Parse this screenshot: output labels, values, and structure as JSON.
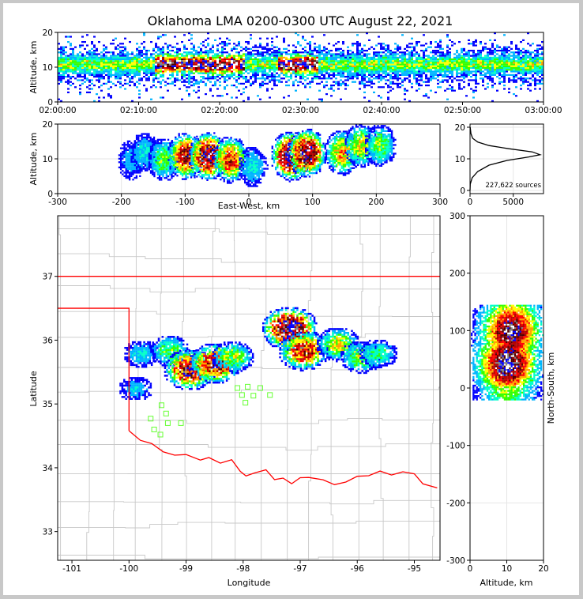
{
  "title": "Oklahoma LMA 0200-0300 UTC August 22, 2021",
  "colors": {
    "density": [
      "#0000ff",
      "#00b4ff",
      "#00ffc8",
      "#32ff00",
      "#ffff00",
      "#ffa000",
      "#ff0000",
      "#b40000",
      "#500000",
      "#ffffff"
    ],
    "state_border": "#ff0000",
    "county_lines": "#c8c8c8",
    "stations": "#66ff33"
  },
  "icons": {
    "station_marker": "open-square-icon"
  },
  "chart_data": [
    {
      "id": "time-height",
      "type": "heatmap",
      "xlabel": "",
      "ylabel": "Altitude, km",
      "xticks": [
        "02:00:00",
        "02:10:00",
        "02:20:00",
        "02:30:00",
        "02:40:00",
        "02:50:00",
        "03:00:00"
      ],
      "xlim": [
        0,
        60
      ],
      "ylim": [
        0,
        20
      ],
      "yticks": [
        0,
        10,
        20
      ],
      "band_center_km": 11,
      "dense_intervals_min": [
        [
          12,
          23
        ],
        [
          27,
          32
        ]
      ]
    },
    {
      "id": "east-west-altitude",
      "type": "heatmap",
      "xlabel": "East-West, km",
      "ylabel": "Altitude, km",
      "xlim": [
        -300,
        300
      ],
      "ylim": [
        0,
        20
      ],
      "xticks": [
        -300,
        -200,
        -100,
        0,
        100,
        200,
        300
      ],
      "yticks": [
        0,
        10,
        20
      ],
      "cells": [
        {
          "x": -185,
          "z": 10,
          "intensity": 0.35
        },
        {
          "x": -165,
          "z": 12,
          "intensity": 0.4
        },
        {
          "x": -135,
          "z": 10,
          "intensity": 0.55
        },
        {
          "x": -100,
          "z": 11,
          "intensity": 0.85
        },
        {
          "x": -65,
          "z": 11,
          "intensity": 0.95
        },
        {
          "x": -30,
          "z": 10,
          "intensity": 0.8
        },
        {
          "x": 5,
          "z": 8,
          "intensity": 0.4
        },
        {
          "x": 65,
          "z": 11,
          "intensity": 1.0
        },
        {
          "x": 90,
          "z": 12,
          "intensity": 0.95
        },
        {
          "x": 145,
          "z": 12,
          "intensity": 0.7
        },
        {
          "x": 175,
          "z": 14,
          "intensity": 0.65
        },
        {
          "x": 205,
          "z": 14,
          "intensity": 0.55
        }
      ]
    },
    {
      "id": "altitude-histogram",
      "type": "line",
      "xlim": [
        0,
        8500
      ],
      "ylim": [
        0,
        20
      ],
      "xticks": [
        0,
        5000
      ],
      "yticks": [
        0,
        10,
        20
      ],
      "profile": [
        [
          0,
          0
        ],
        [
          30,
          2
        ],
        [
          250,
          4
        ],
        [
          900,
          6
        ],
        [
          2200,
          8
        ],
        [
          4300,
          9.5
        ],
        [
          6800,
          10.6
        ],
        [
          8100,
          11.3
        ],
        [
          7200,
          12.2
        ],
        [
          4500,
          13.2
        ],
        [
          2200,
          14.2
        ],
        [
          900,
          15.3
        ],
        [
          300,
          16.5
        ],
        [
          100,
          18
        ],
        [
          20,
          20
        ]
      ],
      "annotation": "227,622 sources"
    },
    {
      "id": "plan-view-map",
      "type": "scatter",
      "xlabel": "Longitude",
      "ylabel": "Latitude",
      "xlim": [
        -101.25,
        -94.55
      ],
      "ylim": [
        32.55,
        37.95
      ],
      "xticks": [
        -101,
        -100,
        -99,
        -98,
        -97,
        -96,
        -95
      ],
      "yticks": [
        33,
        34,
        35,
        36,
        37
      ],
      "storms": [
        {
          "lon": -99.9,
          "lat": 35.25,
          "intensity": 0.35
        },
        {
          "lon": -99.8,
          "lat": 35.8,
          "intensity": 0.4
        },
        {
          "lon": -99.3,
          "lat": 35.85,
          "intensity": 0.55
        },
        {
          "lon": -98.95,
          "lat": 35.55,
          "intensity": 0.9
        },
        {
          "lon": -98.5,
          "lat": 35.65,
          "intensity": 0.9
        },
        {
          "lon": -98.2,
          "lat": 35.75,
          "intensity": 0.6
        },
        {
          "lon": -97.2,
          "lat": 36.2,
          "intensity": 1.0
        },
        {
          "lon": -96.95,
          "lat": 35.85,
          "intensity": 0.85
        },
        {
          "lon": -96.35,
          "lat": 35.95,
          "intensity": 0.65
        },
        {
          "lon": -95.95,
          "lat": 35.75,
          "intensity": 0.6
        },
        {
          "lon": -95.65,
          "lat": 35.8,
          "intensity": 0.5
        }
      ],
      "stations": [
        [
          -99.43,
          34.98
        ],
        [
          -99.62,
          34.77
        ],
        [
          -99.35,
          34.85
        ],
        [
          -99.32,
          34.7
        ],
        [
          -99.09,
          34.7
        ],
        [
          -99.56,
          34.6
        ],
        [
          -99.45,
          34.52
        ],
        [
          -98.1,
          35.25
        ],
        [
          -97.92,
          35.27
        ],
        [
          -97.7,
          35.25
        ],
        [
          -98.02,
          35.14
        ],
        [
          -97.82,
          35.13
        ],
        [
          -97.96,
          35.02
        ],
        [
          -97.53,
          35.14
        ]
      ]
    },
    {
      "id": "north-south-altitude",
      "type": "heatmap",
      "xlabel": "Altitude, km",
      "ylabel": "North-South, km",
      "xlim": [
        0,
        20
      ],
      "ylim": [
        -300,
        300
      ],
      "xticks": [
        0,
        10,
        20
      ],
      "yticks": [
        -300,
        -200,
        -100,
        0,
        100,
        200,
        300
      ],
      "cells": [
        {
          "z": 11,
          "y": 100,
          "intensity": 0.95
        },
        {
          "z": 10,
          "y": 45,
          "intensity": 1.0
        },
        {
          "z": 10,
          "y": 10,
          "intensity": 0.6
        }
      ]
    }
  ]
}
